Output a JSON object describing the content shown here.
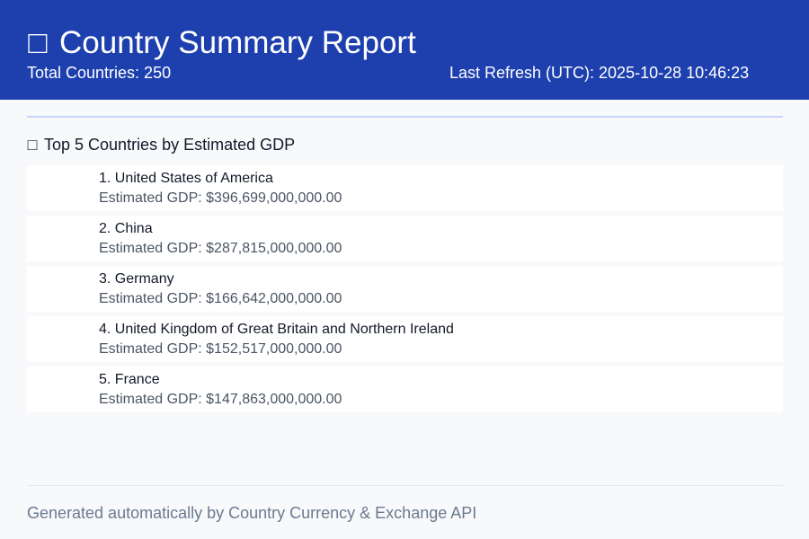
{
  "header": {
    "icon": "chart-icon",
    "title": "Country Summary Report",
    "total_countries": "Total Countries: 250",
    "last_refresh": "Last Refresh (UTC): 2025-10-28 10:46:23"
  },
  "top_countries": {
    "icon": "trophy-icon",
    "heading": "Top 5 Countries by Estimated GDP",
    "items": [
      {
        "name": "1. United States of America",
        "gdp": "Estimated GDP: $396,699,000,000.00"
      },
      {
        "name": "2. China",
        "gdp": "Estimated GDP: $287,815,000,000.00"
      },
      {
        "name": "3. Germany",
        "gdp": "Estimated GDP: $166,642,000,000.00"
      },
      {
        "name": "4. United Kingdom of Great Britain and Northern Ireland",
        "gdp": "Estimated GDP: $152,517,000,000.00"
      },
      {
        "name": "5. France",
        "gdp": "Estimated GDP: $147,863,000,000.00"
      }
    ]
  },
  "footer": {
    "text": "Generated automatically by Country Currency & Exchange API"
  },
  "colors": {
    "header_bg": "#1e40af",
    "page_bg": "#f8f9fb"
  }
}
